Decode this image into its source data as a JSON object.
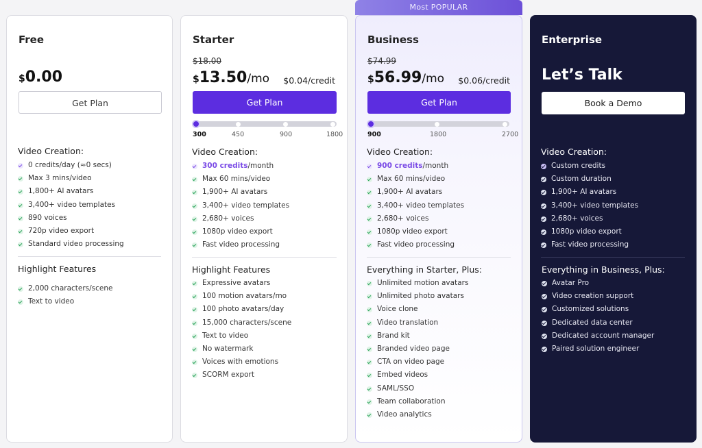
{
  "popular_label": "Most POPULAR",
  "colors": {
    "accent": "#5c2de0",
    "enterprise_bg": "#161838",
    "check_green": "#2aa35a",
    "highlight_purple": "#7b4ce6"
  },
  "plans": {
    "free": {
      "name": "Free",
      "currency": "$",
      "price": "0.00",
      "button": "Get Plan",
      "video_heading": "Video Creation:",
      "video_features": [
        "0 credits/day (≈0 secs)",
        "Max 3 mins/video",
        "1,800+ AI avatars",
        "3,400+ video templates",
        "890  voices",
        "720p video export",
        "Standard video processing"
      ],
      "highlight_heading": "Highlight Features",
      "highlight_features": [
        "2,000 characters/scene",
        "Text to video"
      ]
    },
    "starter": {
      "name": "Starter",
      "old_price": "$18.00",
      "currency": "$",
      "price": "13.50",
      "price_suffix": "/mo",
      "per_credit": "$0.04/credit",
      "button": "Get Plan",
      "slider_ticks": [
        "300",
        "450",
        "900",
        "1800"
      ],
      "slider_value": 300,
      "video_heading": "Video Creation:",
      "credits_value": "300 credits",
      "credits_suffix": "/month",
      "video_features": [
        "Max 60 mins/video",
        "1,900+ AI avatars",
        "3,400+ video templates",
        "2,680+ voices",
        "1080p video export",
        "Fast video processing"
      ],
      "highlight_heading": "Highlight Features",
      "highlight_features": [
        "Expressive avatars",
        "100 motion avatars/mo",
        "100 photo avatars/day",
        "15,000 characters/scene",
        "Text to video",
        "No watermark",
        "Voices with emotions",
        "SCORM export"
      ]
    },
    "business": {
      "name": "Business",
      "old_price": "$74.99",
      "currency": "$",
      "price": "56.99",
      "price_suffix": "/mo",
      "per_credit": "$0.06/credit",
      "button": "Get Plan",
      "slider_ticks": [
        "900",
        "1800",
        "2700"
      ],
      "slider_value": 900,
      "video_heading": "Video Creation:",
      "credits_value": "900 credits",
      "credits_suffix": "/month",
      "video_features": [
        "Max 60 mins/video",
        "1,900+ AI avatars",
        "3,400+ video templates",
        "2,680+ voices",
        "1080p video export",
        "Fast video processing"
      ],
      "highlight_heading": "Everything in Starter, Plus:",
      "highlight_features": [
        "Unlimited motion avatars",
        "Unlimited photo avatars",
        "Voice clone",
        "Video translation",
        "Brand kit",
        "Branded video page",
        "CTA on video page",
        "Embed videos",
        "SAML/SSO",
        "Team collaboration",
        "Video analytics"
      ]
    },
    "enterprise": {
      "name": "Enterprise",
      "headline": "Let’s Talk",
      "button": "Book a Demo",
      "video_heading": "Video Creation:",
      "video_features": [
        "Custom credits",
        "Custom duration",
        "1,900+ AI avatars",
        "3,400+ video templates",
        "2,680+ voices",
        "1080p video export",
        "Fast video processing"
      ],
      "highlight_heading": "Everything in Business, Plus:",
      "highlight_features": [
        "Avatar Pro",
        "Video creation support",
        "Customized solutions",
        "Dedicated data center",
        "Dedicated account manager",
        "Paired solution engineer"
      ]
    }
  }
}
